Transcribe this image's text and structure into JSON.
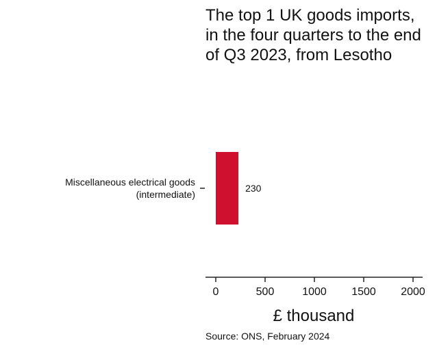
{
  "chart_data": {
    "type": "bar",
    "orientation": "horizontal",
    "title": "The top 1 UK goods imports, in the four quarters to the end of Q3 2023, from Lesotho",
    "categories": [
      "Miscellaneous electrical goods\n(intermediate)"
    ],
    "values": [
      230
    ],
    "data_labels": [
      "230"
    ],
    "xlabel": "£ thousand",
    "ylabel": "",
    "xlim": [
      0,
      2000
    ],
    "xticks": [
      0,
      500,
      1000,
      1500,
      2000
    ],
    "xtick_labels": [
      "0",
      "500",
      "1000",
      "1500",
      "2000"
    ],
    "bar_color": "#d0102f",
    "grid": false,
    "source": "Source: ONS, February 2024"
  }
}
